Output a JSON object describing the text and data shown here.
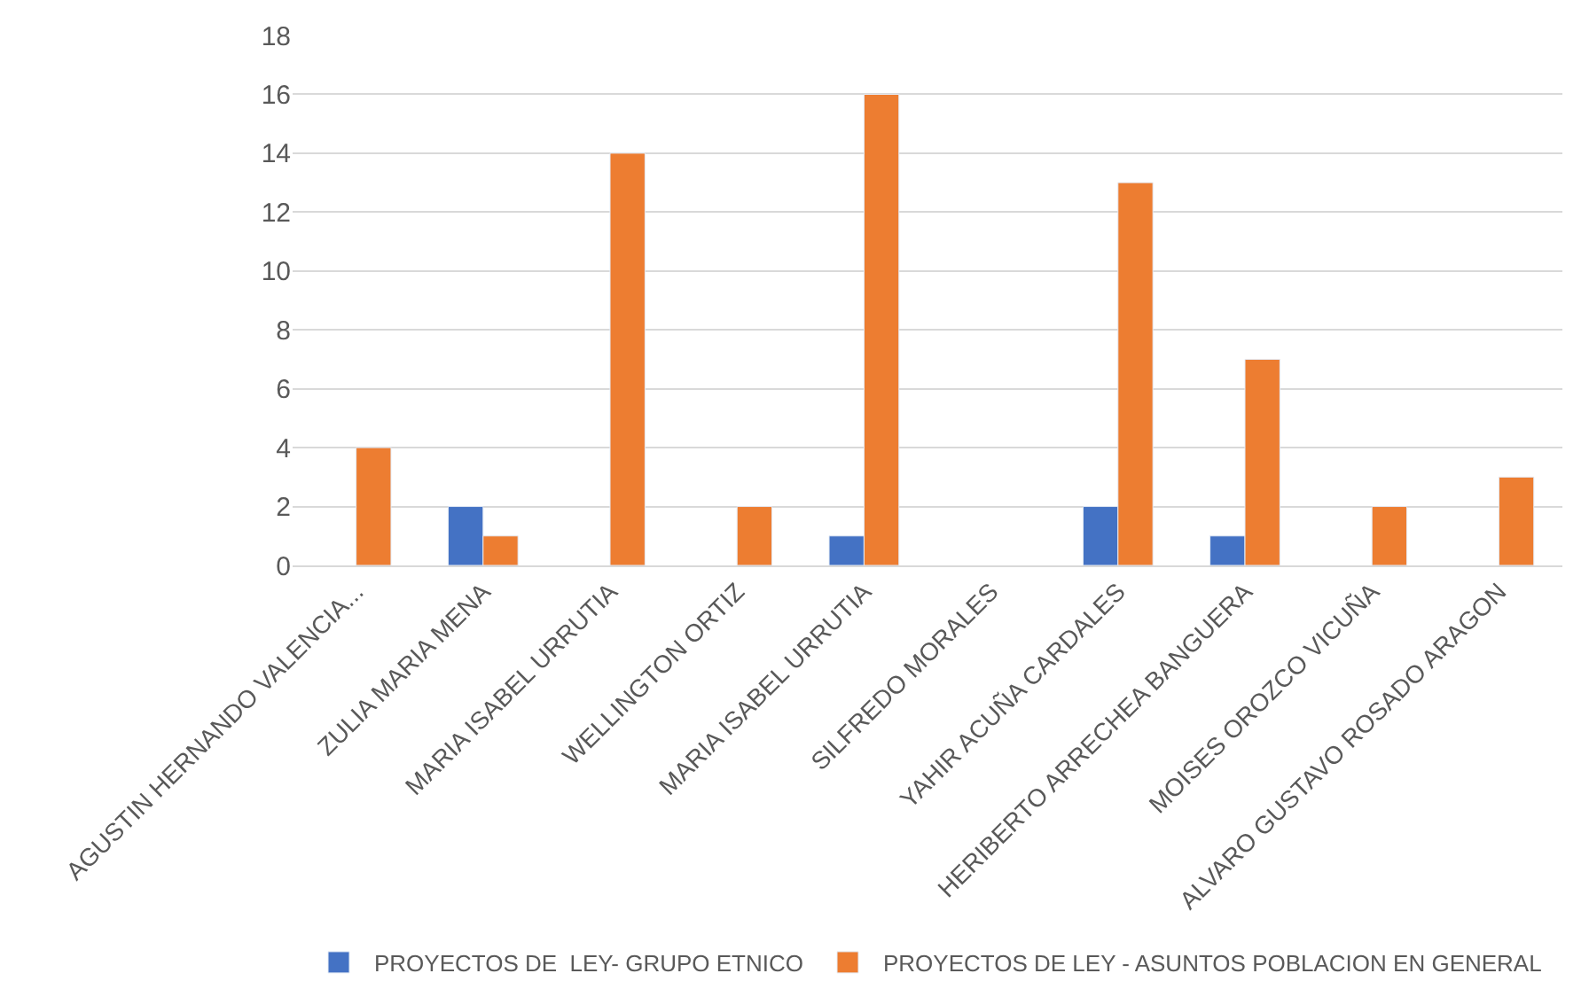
{
  "chart_data": {
    "type": "bar",
    "categories": [
      "AGUSTIN HERNANDO VALENCIA...",
      "ZULIA MARIA MENA",
      "MARIA ISABEL URRUTIA",
      "WELLINGTON ORTIZ",
      "MARIA ISABEL URRUTIA",
      "SILFREDO MORALES",
      "YAHIR ACUÑA CARDALES",
      "HERIBERTO ARRECHEA BANGUERA",
      "MOISES OROZCO VICUÑA",
      "ALVARO GUSTAVO ROSADO ARAGON"
    ],
    "series": [
      {
        "name": "PROYECTOS DE  LEY- GRUPO ETNICO",
        "color": "#4472c4",
        "values": [
          null,
          2,
          null,
          null,
          1,
          null,
          2,
          1,
          null,
          null
        ]
      },
      {
        "name": "PROYECTOS DE LEY - ASUNTOS POBLACION EN GENERAL",
        "color": "#ed7d31",
        "values": [
          4,
          1,
          14,
          2,
          16,
          null,
          13,
          7,
          2,
          3
        ]
      }
    ],
    "ylim": [
      0,
      18
    ],
    "yticks": [
      0,
      2,
      4,
      6,
      8,
      10,
      12,
      14,
      16,
      18
    ],
    "grid": "y",
    "legend": "bottom"
  }
}
